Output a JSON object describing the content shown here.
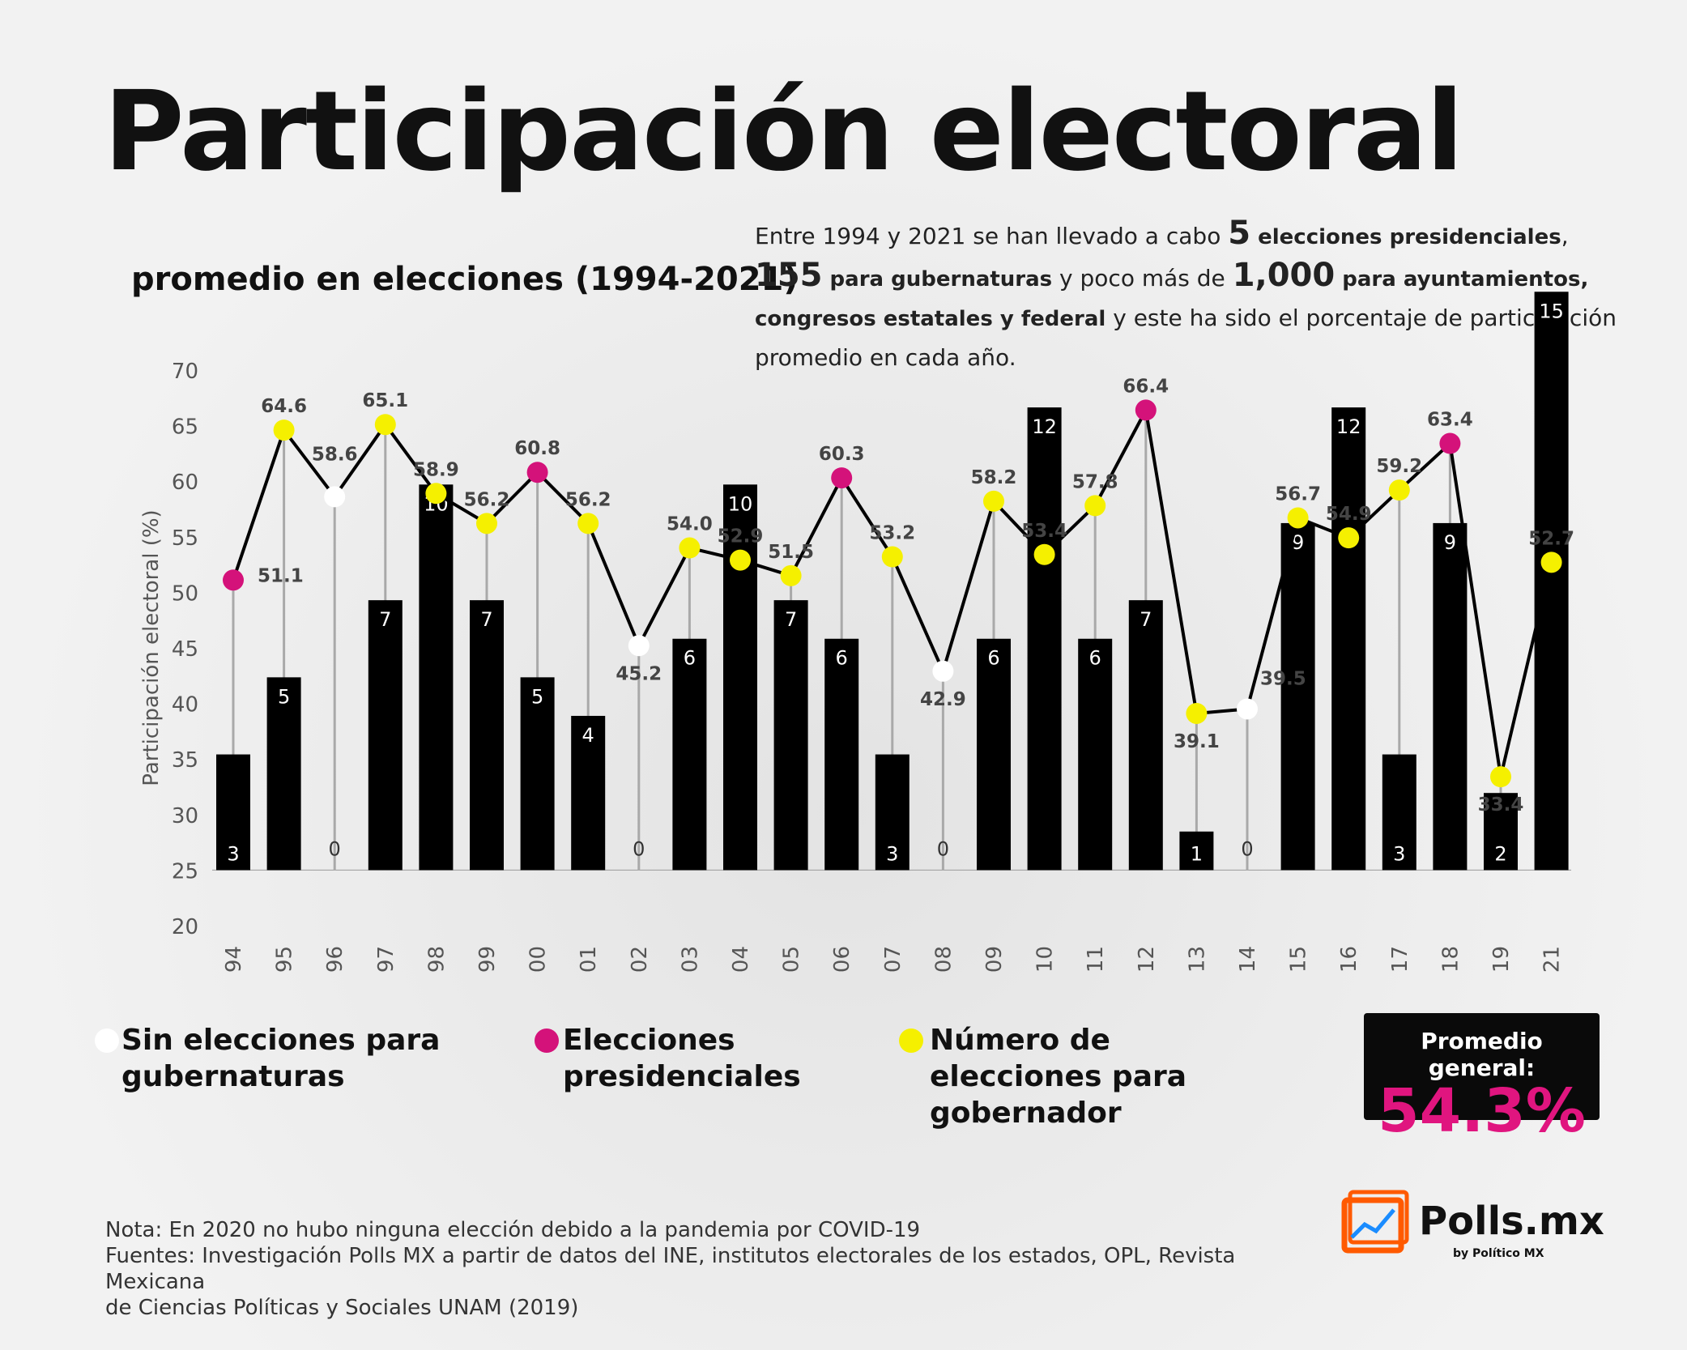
{
  "title": "Participación electoral",
  "subtitle": "promedio en elecciones (1994-2021)",
  "intro": {
    "p1": "Entre 1994 y 2021 se han llevado a cabo ",
    "n1": "5",
    "b1": " elecciones presidenciales",
    "p2": ",",
    "n2": "155",
    "b2": " para gubernaturas",
    "p3": " y poco más de ",
    "n3": "1,000",
    "b3": " para ayuntamientos,",
    "b4": "congresos estatales y federal",
    "p4": " y este ha sido el porcentaje de participación",
    "p5": "promedio en cada año."
  },
  "legend": {
    "white": "Sin elecciones para gubernaturas",
    "magenta": "Elecciones presidenciales",
    "yellow": "Número de elecciones para gobernador"
  },
  "average": {
    "label": "Promedio general:",
    "value": "54.3%"
  },
  "notes": {
    "line1": "Nota: En 2020 no hubo ninguna elección debido a la pandemia por COVID-19",
    "line2": "Fuentes: Investigación Polls MX a partir de datos del INE, institutos electorales de los estados, OPL, Revista Mexicana",
    "line3": "de Ciencias Políticas y Sociales UNAM (2019)"
  },
  "logo": {
    "name": "Polls.mx",
    "sub": "by Político MX"
  },
  "colors": {
    "white": "#ffffff",
    "magenta": "#d4127a",
    "yellow": "#f5f000",
    "bar": "#000000",
    "accent": "#e0157f"
  },
  "chart_data": {
    "type": "bar+line",
    "ylabel": "Participación electoral (%)",
    "ylim": [
      20,
      70
    ],
    "yticks": [
      20,
      25,
      30,
      35,
      40,
      45,
      50,
      55,
      60,
      65,
      70
    ],
    "categories": [
      "1994",
      "1995",
      "1996",
      "1997",
      "1998",
      "1999",
      "2000",
      "2001",
      "2002",
      "2003",
      "2004",
      "2005",
      "2006",
      "2007",
      "2008",
      "2009",
      "2010",
      "2011",
      "2012",
      "2013",
      "2014",
      "2015",
      "2016",
      "2017",
      "2018",
      "2019",
      "2021"
    ],
    "participation": [
      51.1,
      64.6,
      58.6,
      65.1,
      58.9,
      56.2,
      60.8,
      56.2,
      45.2,
      54.0,
      52.9,
      51.5,
      60.3,
      53.2,
      42.9,
      58.2,
      53.4,
      57.8,
      66.4,
      39.1,
      39.5,
      56.7,
      54.9,
      59.2,
      63.4,
      33.4,
      52.7
    ],
    "participation_labels": [
      "51.1",
      "64.6",
      "58.6",
      "65.1",
      "58.9",
      "56.2",
      "60.8",
      "56.2",
      "45.2",
      "54.0",
      "52.9",
      "51.5",
      "60.3",
      "53.2",
      "42.9",
      "58.2",
      "53.4",
      "57.8",
      "66.4",
      "39.1",
      "39.5",
      "56.7",
      "54.9",
      "59.2",
      "63.4",
      "33.4",
      "52.7"
    ],
    "point_type": [
      "magenta",
      "yellow",
      "white",
      "yellow",
      "yellow",
      "yellow",
      "magenta",
      "yellow",
      "white",
      "yellow",
      "yellow",
      "yellow",
      "magenta",
      "yellow",
      "white",
      "yellow",
      "yellow",
      "yellow",
      "magenta",
      "yellow",
      "white",
      "yellow",
      "yellow",
      "yellow",
      "magenta",
      "yellow",
      "yellow"
    ],
    "governor_elections": [
      3,
      5,
      0,
      7,
      10,
      7,
      5,
      4,
      0,
      6,
      10,
      7,
      6,
      3,
      0,
      6,
      12,
      6,
      7,
      1,
      0,
      9,
      12,
      3,
      9,
      2,
      15
    ]
  }
}
